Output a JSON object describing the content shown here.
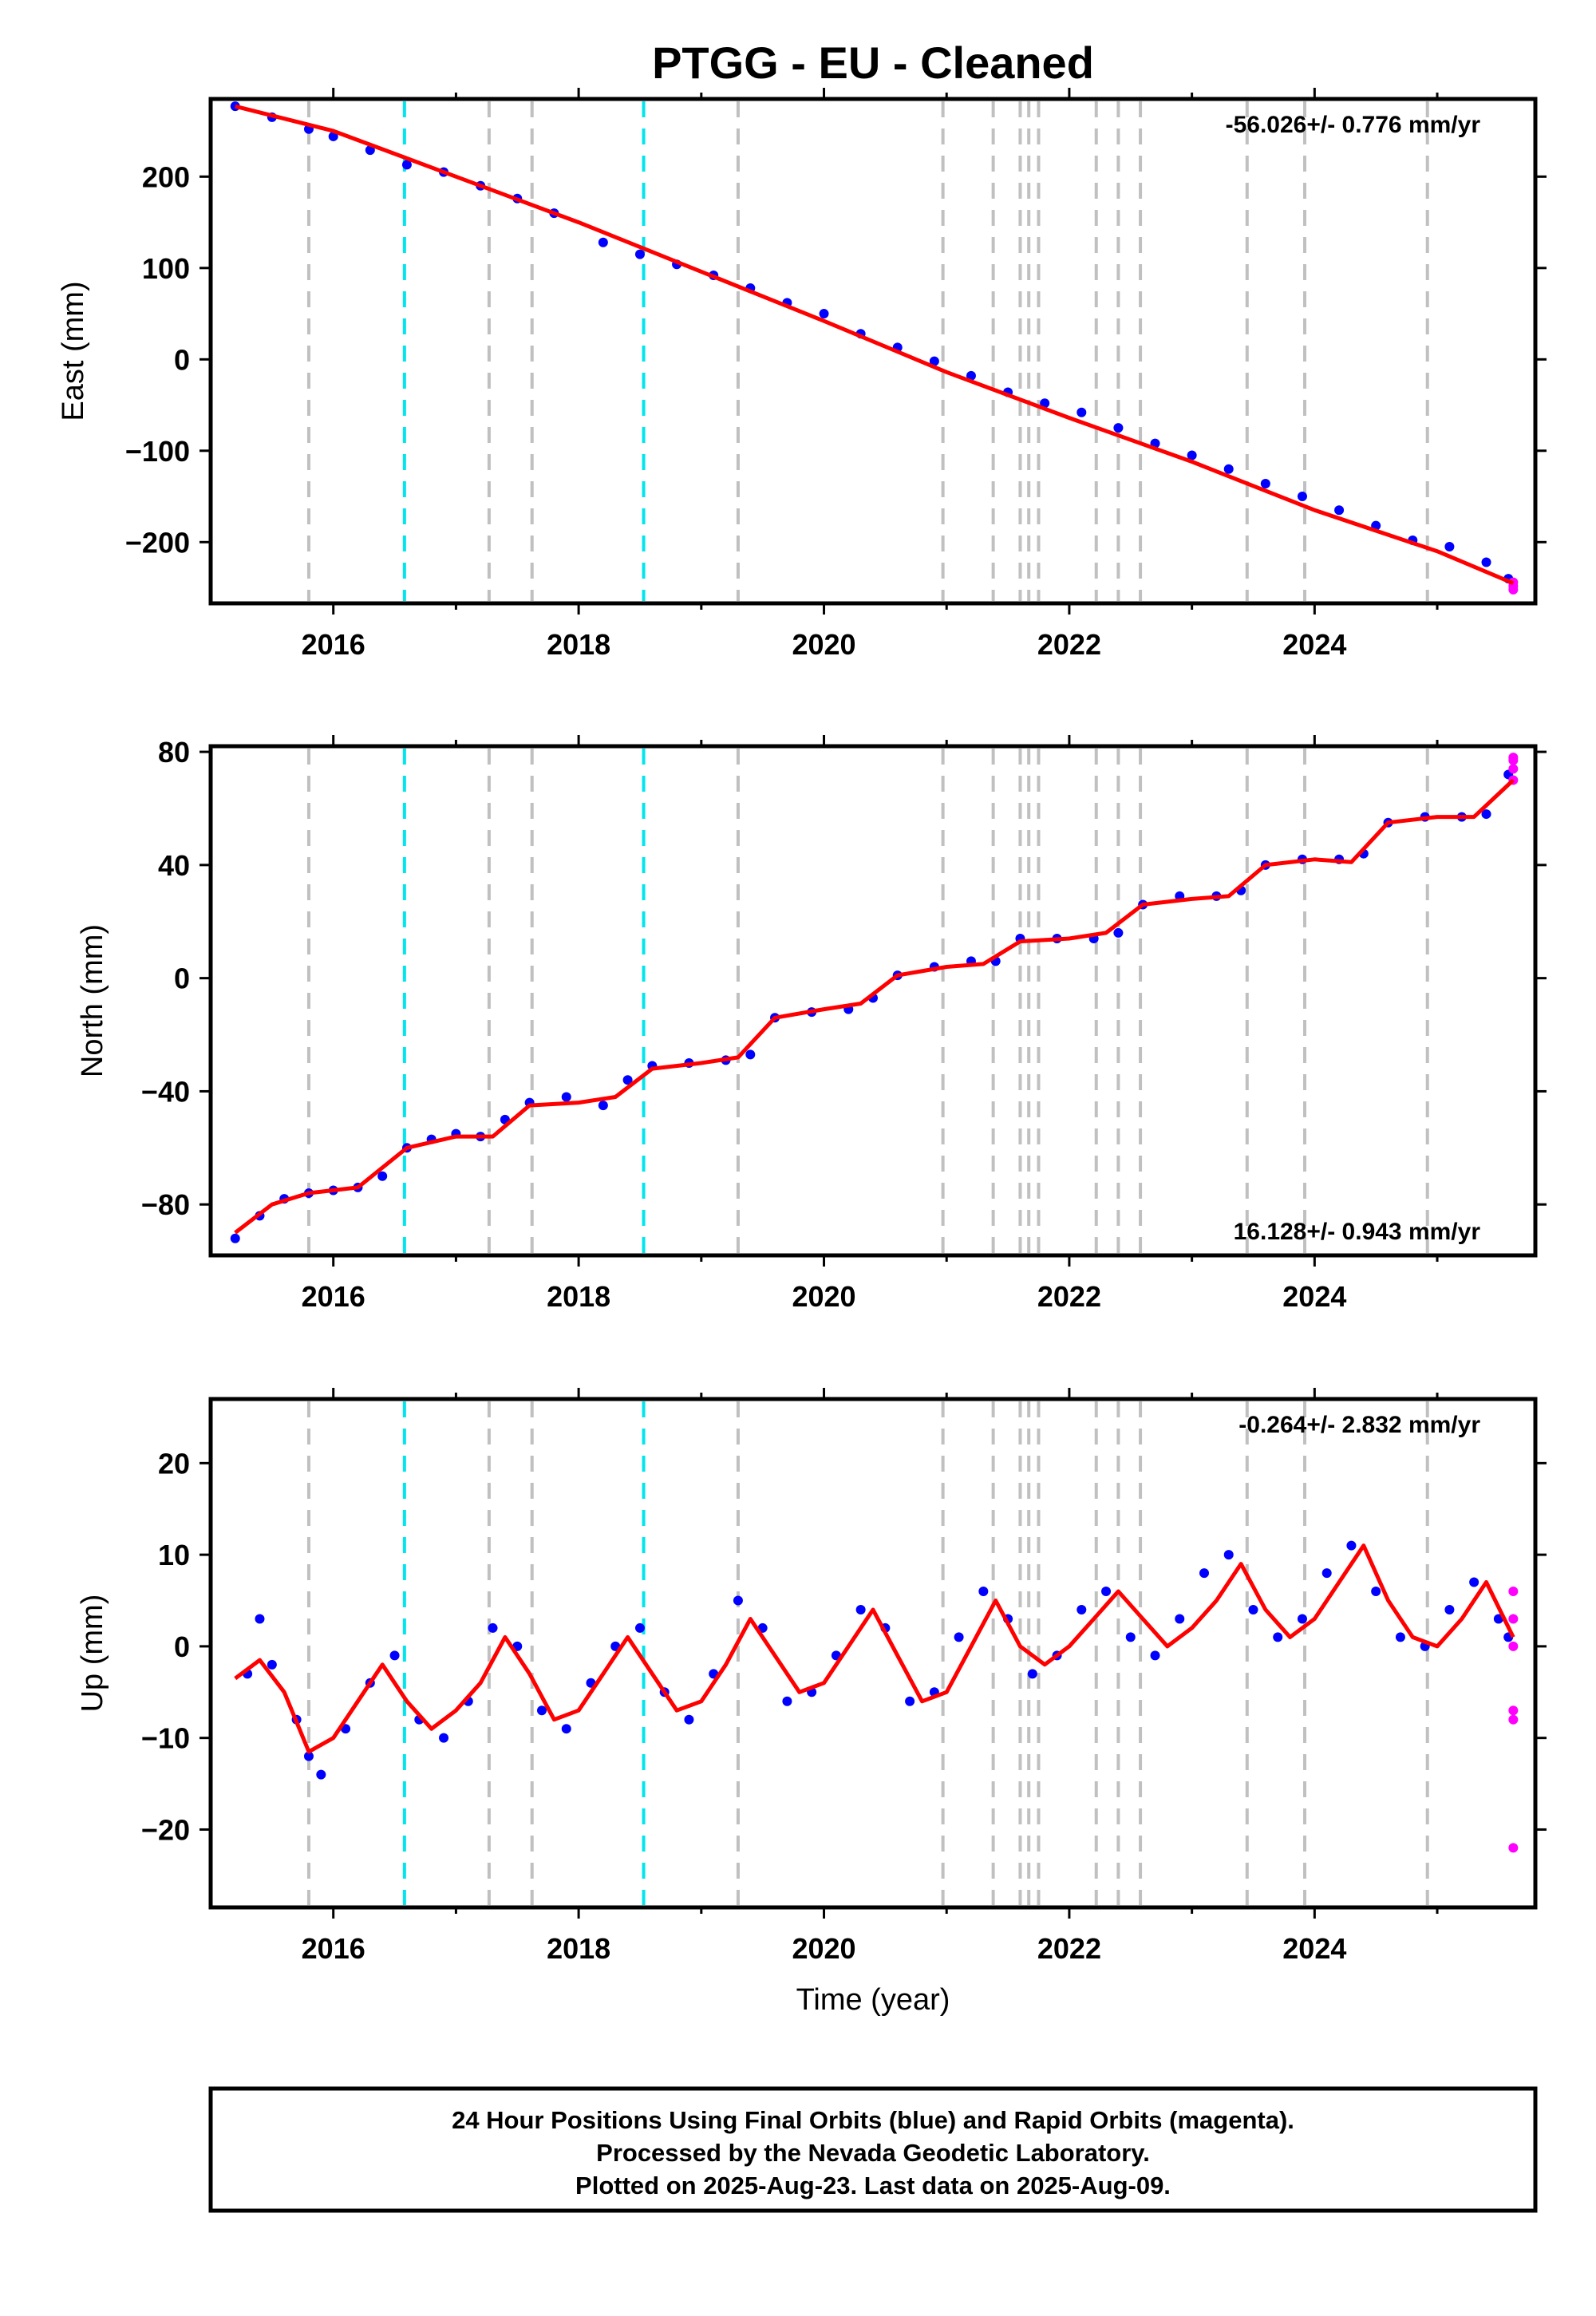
{
  "chart_data": [
    {
      "type": "scatter",
      "title": "PTGG  - EU - Cleaned",
      "ylabel": "East (mm)",
      "xlabel": "",
      "xlim": [
        2015.0,
        2025.8
      ],
      "ylim": [
        -267,
        285
      ],
      "xticks": [
        "2016",
        "2018",
        "2020",
        "2022",
        "2024"
      ],
      "yticks": [
        "200",
        "100",
        "0",
        "−100",
        "−200"
      ],
      "rate_label": "-56.026+/- 0.776 mm/yr",
      "rate_position": "top-right",
      "series": [
        {
          "name": "Final Orbits",
          "color": "#0000ff",
          "x": [
            2015.2,
            2015.5,
            2015.8,
            2016.0,
            2016.3,
            2016.6,
            2016.9,
            2017.2,
            2017.5,
            2017.8,
            2018.2,
            2018.5,
            2018.8,
            2019.1,
            2019.4,
            2019.7,
            2020.0,
            2020.3,
            2020.6,
            2020.9,
            2021.2,
            2021.5,
            2021.8,
            2022.1,
            2022.4,
            2022.7,
            2023.0,
            2023.3,
            2023.6,
            2023.9,
            2024.2,
            2024.5,
            2024.8,
            2025.1,
            2025.4,
            2025.58
          ],
          "y": [
            277,
            265,
            252,
            244,
            229,
            213,
            205,
            190,
            176,
            160,
            128,
            115,
            104,
            92,
            78,
            62,
            50,
            28,
            13,
            -2,
            -18,
            -36,
            -48,
            -58,
            -75,
            -92,
            -105,
            -120,
            -136,
            -150,
            -165,
            -182,
            -198,
            -205,
            -222,
            -240
          ]
        },
        {
          "name": "Rapid Orbits",
          "color": "#ff00ff",
          "x": [
            2025.62,
            2025.62,
            2025.62
          ],
          "y": [
            -244,
            -248,
            -252
          ]
        }
      ],
      "fit": {
        "name": "model",
        "color": "#ff0000",
        "x": [
          2015.2,
          2016.0,
          2017.0,
          2018.0,
          2019.0,
          2020.0,
          2021.0,
          2022.0,
          2023.0,
          2024.0,
          2025.0,
          2025.62
        ],
        "y": [
          277,
          250,
          200,
          150,
          96,
          42,
          -14,
          -64,
          -112,
          -165,
          -210,
          -245
        ]
      }
    },
    {
      "type": "scatter",
      "title": "",
      "ylabel": "North (mm)",
      "xlabel": "",
      "xlim": [
        2015.0,
        2025.8
      ],
      "ylim": [
        -98,
        82
      ],
      "xticks": [
        "2016",
        "2018",
        "2020",
        "2022",
        "2024"
      ],
      "yticks": [
        "80",
        "40",
        "0",
        "−40",
        "−80"
      ],
      "rate_label": "16.128+/- 0.943 mm/yr",
      "rate_position": "bottom-right",
      "series": [
        {
          "name": "Final Orbits",
          "color": "#0000ff",
          "x": [
            2015.2,
            2015.4,
            2015.6,
            2015.8,
            2016.0,
            2016.2,
            2016.4,
            2016.6,
            2016.8,
            2017.0,
            2017.2,
            2017.4,
            2017.6,
            2017.9,
            2018.2,
            2018.4,
            2018.6,
            2018.9,
            2019.2,
            2019.4,
            2019.6,
            2019.9,
            2020.2,
            2020.4,
            2020.6,
            2020.9,
            2021.2,
            2021.4,
            2021.6,
            2021.9,
            2022.2,
            2022.4,
            2022.6,
            2022.9,
            2023.2,
            2023.4,
            2023.6,
            2023.9,
            2024.2,
            2024.4,
            2024.6,
            2024.9,
            2025.2,
            2025.4,
            2025.58
          ],
          "y": [
            -92,
            -84,
            -78,
            -76,
            -75,
            -74,
            -70,
            -60,
            -57,
            -55,
            -56,
            -50,
            -44,
            -42,
            -45,
            -36,
            -31,
            -30,
            -29,
            -27,
            -14,
            -12,
            -11,
            -7,
            1,
            4,
            6,
            6,
            14,
            14,
            14,
            16,
            26,
            29,
            29,
            31,
            40,
            42,
            42,
            44,
            55,
            57,
            57,
            58,
            72
          ]
        },
        {
          "name": "Rapid Orbits",
          "color": "#ff00ff",
          "x": [
            2025.62,
            2025.62,
            2025.62,
            2025.62
          ],
          "y": [
            70,
            74,
            77,
            78
          ]
        }
      ],
      "fit": {
        "name": "model",
        "color": "#ff0000",
        "x": [
          2015.2,
          2015.5,
          2015.8,
          2016.2,
          2016.6,
          2017.0,
          2017.3,
          2017.6,
          2018.0,
          2018.3,
          2018.6,
          2019.0,
          2019.3,
          2019.6,
          2020.0,
          2020.3,
          2020.6,
          2021.0,
          2021.3,
          2021.6,
          2022.0,
          2022.3,
          2022.6,
          2023.0,
          2023.3,
          2023.6,
          2024.0,
          2024.3,
          2024.6,
          2025.0,
          2025.3,
          2025.62
        ],
        "y": [
          -90,
          -80,
          -76,
          -74,
          -60,
          -56,
          -56,
          -45,
          -44,
          -42,
          -32,
          -30,
          -28,
          -14,
          -11,
          -9,
          1,
          4,
          5,
          13,
          14,
          16,
          26,
          28,
          29,
          40,
          42,
          41,
          55,
          57,
          57,
          70
        ]
      }
    },
    {
      "type": "scatter",
      "title": "",
      "ylabel": "Up (mm)",
      "xlabel": "Time (year)",
      "xlim": [
        2015.0,
        2025.8
      ],
      "ylim": [
        -28.5,
        27
      ],
      "xticks": [
        "2016",
        "2018",
        "2020",
        "2022",
        "2024"
      ],
      "yticks": [
        "20",
        "10",
        "0",
        "−10",
        "−20"
      ],
      "rate_label": "-0.264+/- 2.832 mm/yr",
      "rate_position": "top-right",
      "series": [
        {
          "name": "Final Orbits",
          "color": "#0000ff",
          "x": [
            2015.3,
            2015.4,
            2015.5,
            2015.7,
            2015.8,
            2015.9,
            2016.1,
            2016.3,
            2016.5,
            2016.7,
            2016.9,
            2017.1,
            2017.3,
            2017.5,
            2017.7,
            2017.9,
            2018.1,
            2018.3,
            2018.5,
            2018.7,
            2018.9,
            2019.1,
            2019.3,
            2019.5,
            2019.7,
            2019.9,
            2020.1,
            2020.3,
            2020.5,
            2020.7,
            2020.9,
            2021.1,
            2021.3,
            2021.5,
            2021.7,
            2021.9,
            2022.1,
            2022.3,
            2022.5,
            2022.7,
            2022.9,
            2023.1,
            2023.3,
            2023.5,
            2023.7,
            2023.9,
            2024.1,
            2024.3,
            2024.5,
            2024.7,
            2024.9,
            2025.1,
            2025.3,
            2025.5,
            2025.58
          ],
          "y": [
            -3,
            3,
            -2,
            -8,
            -12,
            -14,
            -9,
            -4,
            -1,
            -8,
            -10,
            -6,
            2,
            0,
            -7,
            -9,
            -4,
            0,
            2,
            -5,
            -8,
            -3,
            5,
            2,
            -6,
            -5,
            -1,
            4,
            2,
            -6,
            -5,
            1,
            6,
            3,
            -3,
            -1,
            4,
            6,
            1,
            -1,
            3,
            8,
            10,
            4,
            1,
            3,
            8,
            11,
            6,
            1,
            0,
            4,
            7,
            3,
            1
          ]
        },
        {
          "name": "Rapid Orbits",
          "color": "#ff00ff",
          "x": [
            2025.62,
            2025.62,
            2025.62,
            2025.62,
            2025.62,
            2025.62
          ],
          "y": [
            6,
            3,
            0,
            -7,
            -8,
            -22
          ]
        }
      ],
      "fit": {
        "name": "model",
        "color": "#ff0000",
        "x": [
          2015.2,
          2015.4,
          2015.6,
          2015.8,
          2016.0,
          2016.2,
          2016.4,
          2016.6,
          2016.8,
          2017.0,
          2017.2,
          2017.4,
          2017.6,
          2017.8,
          2018.0,
          2018.2,
          2018.4,
          2018.6,
          2018.8,
          2019.0,
          2019.2,
          2019.4,
          2019.6,
          2019.8,
          2020.0,
          2020.2,
          2020.4,
          2020.6,
          2020.8,
          2021.0,
          2021.2,
          2021.4,
          2021.6,
          2021.8,
          2022.0,
          2022.2,
          2022.4,
          2022.6,
          2022.8,
          2023.0,
          2023.2,
          2023.4,
          2023.6,
          2023.8,
          2024.0,
          2024.2,
          2024.4,
          2024.6,
          2024.8,
          2025.0,
          2025.2,
          2025.4,
          2025.62
        ],
        "y": [
          -3.5,
          -1.5,
          -5,
          -11.5,
          -10,
          -6,
          -2,
          -6,
          -9,
          -7,
          -4,
          1,
          -3,
          -8,
          -7,
          -3,
          1,
          -3,
          -7,
          -6,
          -2,
          3,
          -1,
          -5,
          -4,
          0,
          4,
          -1,
          -6,
          -5,
          0,
          5,
          0,
          -2,
          0,
          3,
          6,
          3,
          0,
          2,
          5,
          9,
          4,
          1,
          3,
          7,
          11,
          5,
          1,
          0,
          3,
          7,
          1
        ]
      }
    }
  ],
  "footer": {
    "line1": "24 Hour Positions Using Final Orbits (blue) and Rapid Orbits (magenta).",
    "line2": "Processed by the Nevada Geodetic Laboratory.",
    "line3": "Plotted on 2025-Aug-23. Last data on 2025-Aug-09."
  },
  "event_lines": {
    "gray": [
      2015.8,
      2017.27,
      2017.62,
      2019.3,
      2020.97,
      2021.38,
      2021.6,
      2021.67,
      2021.75,
      2022.22,
      2022.4,
      2022.58,
      2023.45,
      2023.92,
      2024.92
    ],
    "cyan": [
      2016.58,
      2018.53
    ],
    "gray_color": "#c0c0c0",
    "cyan_color": "#00e5ee"
  }
}
